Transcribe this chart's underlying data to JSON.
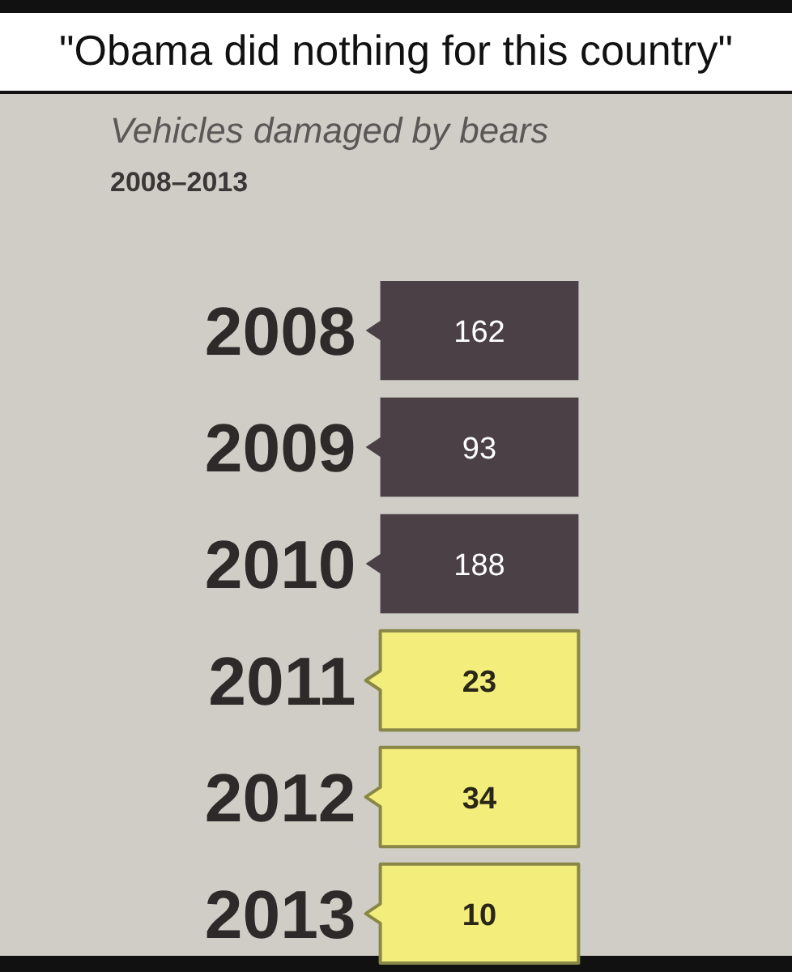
{
  "chart_data": {
    "type": "heatmap",
    "title": "Vehicles damaged by bears",
    "subtitle": "2008–2013",
    "annotations": [
      "\"Obama did nothing for this country\""
    ],
    "categories": [
      null
    ],
    "y_categories": [
      "2008",
      "2009",
      "2010",
      "2011",
      "2012",
      "2013"
    ],
    "cells": [
      [
        162
      ],
      [
        93
      ],
      [
        188
      ],
      [
        23
      ],
      [
        34
      ],
      [
        10
      ]
    ],
    "colors": [
      "#4b4046",
      "#4b4046",
      "#4b4046",
      "#f3ee7c",
      "#f3ee7c",
      "#f3ee7c"
    ],
    "data_labels": true
  }
}
